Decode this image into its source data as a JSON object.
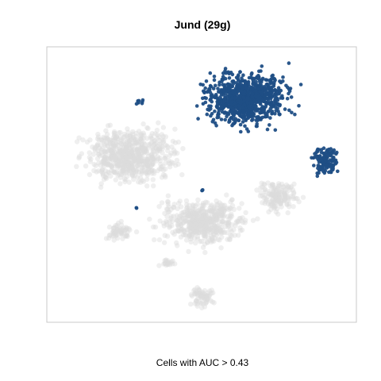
{
  "chart_data": {
    "type": "scatter",
    "title": "Jund (29g)",
    "xlabel": "",
    "ylabel": "",
    "caption": "Cells with AUC > 0.43",
    "grid": false,
    "axes_ticks": false,
    "legend": "none",
    "colors": {
      "highlight": "#1f4e85",
      "background": "#dcdcdc",
      "frame": "#c8c8c8"
    },
    "series": [
      {
        "name": "",
        "role": "background",
        "clusters": [
          {
            "cx": 165,
            "cy": 195,
            "rx": 90,
            "ry": 55,
            "n": 650
          },
          {
            "cx": 255,
            "cy": 280,
            "rx": 85,
            "ry": 45,
            "n": 520
          },
          {
            "cx": 150,
            "cy": 292,
            "rx": 28,
            "ry": 18,
            "n": 60
          },
          {
            "cx": 350,
            "cy": 248,
            "rx": 42,
            "ry": 32,
            "n": 150
          },
          {
            "cx": 255,
            "cy": 375,
            "rx": 25,
            "ry": 20,
            "n": 70
          },
          {
            "cx": 210,
            "cy": 332,
            "rx": 18,
            "ry": 8,
            "n": 20
          }
        ]
      },
      {
        "name": "",
        "role": "highlight",
        "clusters": [
          {
            "cx": 310,
            "cy": 125,
            "rx": 80,
            "ry": 52,
            "n": 900
          },
          {
            "cx": 410,
            "cy": 203,
            "rx": 23,
            "ry": 28,
            "n": 130
          },
          {
            "cx": 178,
            "cy": 128,
            "rx": 12,
            "ry": 6,
            "n": 10
          },
          {
            "cx": 255,
            "cy": 240,
            "rx": 2,
            "ry": 2,
            "n": 3
          },
          {
            "cx": 172,
            "cy": 262,
            "rx": 1,
            "ry": 1,
            "n": 2
          }
        ]
      }
    ]
  }
}
